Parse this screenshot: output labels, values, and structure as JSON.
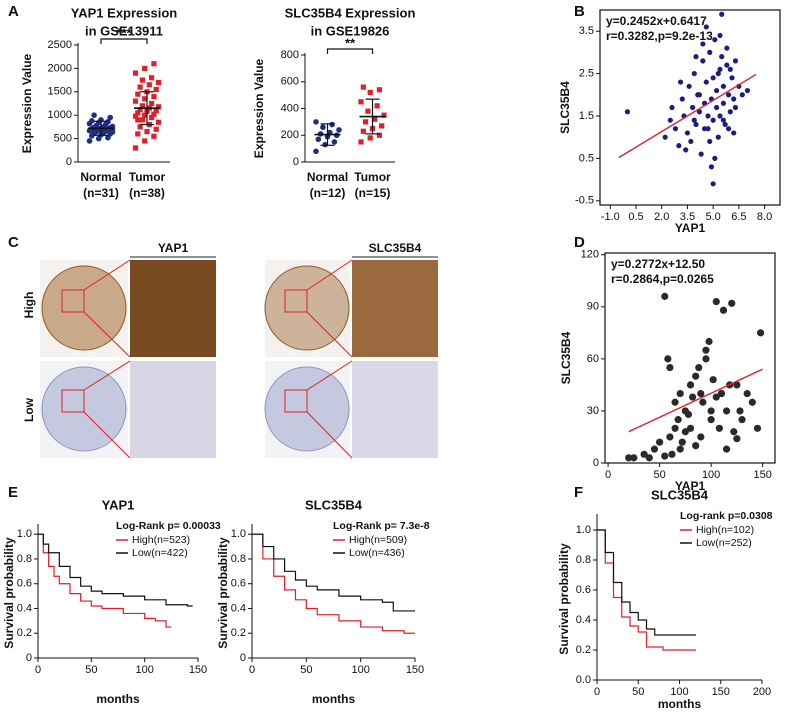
{
  "chart_data": [
    {
      "type": "strip",
      "panel_label": "A",
      "title": "YAP1 Expression",
      "subtitle": "in GSE13911",
      "ylabel": "Expression Value",
      "significance": "***",
      "ylim": [
        0,
        2500
      ],
      "yticks": [
        0,
        500,
        1000,
        1500,
        2000,
        2500
      ],
      "series": [
        {
          "name": "Normal",
          "n_label": "(n=31)",
          "color": "#1f2d86",
          "marker": "circle",
          "mean": 720,
          "sd": 150,
          "values": [
            450,
            500,
            520,
            560,
            580,
            600,
            610,
            620,
            640,
            650,
            660,
            670,
            690,
            700,
            710,
            720,
            730,
            740,
            750,
            760,
            780,
            800,
            820,
            840,
            860,
            880,
            900,
            950,
            1000,
            650,
            700
          ]
        },
        {
          "name": "Tumor",
          "n_label": "(n=38)",
          "color": "#e41e26",
          "marker": "square",
          "mean": 1150,
          "sd": 350,
          "values": [
            300,
            450,
            550,
            600,
            650,
            700,
            750,
            800,
            850,
            900,
            950,
            980,
            1000,
            1020,
            1050,
            1080,
            1100,
            1120,
            1150,
            1180,
            1200,
            1250,
            1300,
            1350,
            1400,
            1450,
            1500,
            1550,
            1600,
            1650,
            1700,
            1750,
            1800,
            1900,
            2000,
            2100,
            900,
            1100
          ]
        }
      ]
    },
    {
      "type": "strip",
      "title": "SLC35B4 Expression",
      "subtitle": "in GSE19826",
      "ylabel": "Expression Value",
      "significance": "**",
      "ylim": [
        0,
        800
      ],
      "yticks": [
        0,
        200,
        400,
        600,
        800
      ],
      "series": [
        {
          "name": "Normal",
          "n_label": "(n=12)",
          "color": "#1f2d86",
          "marker": "circle",
          "mean": 205,
          "sd": 80,
          "values": [
            80,
            130,
            150,
            170,
            190,
            200,
            210,
            220,
            240,
            260,
            280,
            300
          ]
        },
        {
          "name": "Tumor",
          "n_label": "(n=15)",
          "color": "#e41e26",
          "marker": "square",
          "mean": 340,
          "sd": 130,
          "values": [
            150,
            180,
            200,
            230,
            250,
            270,
            300,
            320,
            350,
            380,
            420,
            450,
            520,
            540,
            560
          ]
        }
      ]
    },
    {
      "type": "scatter",
      "panel_label": "B",
      "xlabel": "YAP1",
      "ylabel": "SLC35B4",
      "equation": "y=0.2452x+0.6417",
      "stats": "r=0.3282,p=9.2e-13",
      "color": "#1a1f80",
      "fit_color": "#e41e26",
      "xlim": [
        -1.6,
        8.9
      ],
      "ylim": [
        -0.6,
        4.0
      ],
      "xticks": [
        {
          "value": -1,
          "label": "-1.0"
        },
        0.5,
        {
          "value": 2,
          "label": "2.0"
        },
        3.5,
        {
          "value": 5,
          "label": "5.0"
        },
        6.5,
        {
          "value": 8,
          "label": "8.0"
        }
      ],
      "yticks": [
        -0.5,
        0.5,
        1.5,
        2.5,
        3.5
      ],
      "x": [
        0.0,
        2.2,
        2.5,
        2.8,
        3.0,
        3.2,
        3.3,
        3.5,
        3.6,
        3.7,
        3.8,
        3.9,
        4.0,
        4.1,
        4.2,
        4.3,
        4.4,
        4.5,
        4.5,
        4.6,
        4.7,
        4.8,
        4.8,
        4.9,
        5.0,
        5.0,
        5.1,
        5.2,
        5.2,
        5.3,
        5.4,
        5.4,
        5.5,
        5.6,
        5.6,
        5.7,
        5.8,
        5.9,
        6.0,
        6.1,
        6.2,
        6.3,
        6.5,
        6.7,
        7.0,
        3.4,
        4.0,
        4.6,
        5.1,
        5.5,
        5.9,
        6.3,
        3.9,
        4.4,
        4.9,
        5.3,
        5.8,
        6.2,
        4.2,
        5.0,
        5.6,
        2.6,
        3.1,
        4.7,
        5.4,
        6.0
      ],
      "y": [
        1.6,
        1.0,
        1.4,
        1.2,
        0.8,
        1.9,
        1.5,
        1.1,
        2.2,
        0.9,
        1.7,
        2.5,
        1.3,
        2.0,
        1.6,
        0.6,
        2.8,
        1.8,
        1.2,
        2.3,
        1.5,
        3.0,
        0.9,
        1.9,
        2.4,
        1.4,
        3.3,
        1.7,
        2.1,
        1.0,
        2.6,
        1.5,
        2.9,
        1.8,
        2.2,
        1.3,
        2.7,
        2.0,
        1.6,
        2.4,
        1.9,
        2.8,
        2.2,
        2.0,
        2.1,
        0.7,
        2.9,
        3.6,
        0.5,
        3.9,
        1.2,
        1.7,
        1.4,
        3.2,
        0.3,
        2.5,
        3.1,
        1.1,
        2.0,
        -0.1,
        1.4,
        1.7,
        2.3,
        1.2,
        3.4,
        2.6
      ],
      "fit": {
        "x": [
          -0.5,
          7.5
        ],
        "y": [
          0.52,
          2.48
        ]
      }
    },
    {
      "type": "scatter",
      "panel_label": "D",
      "xlabel": "YAP1",
      "ylabel": "SLC35B4",
      "equation": "y=0.2772x+12.50",
      "stats": "r=0.2864,p=0.0265",
      "color": "#2a2a2a",
      "fit_color": "#e41e26",
      "xlim": [
        -3,
        162
      ],
      "ylim": [
        0,
        121
      ],
      "xticks": [
        0,
        50,
        100,
        150
      ],
      "yticks": [
        0,
        30,
        60,
        90,
        120
      ],
      "x": [
        20,
        25,
        35,
        40,
        45,
        50,
        55,
        58,
        60,
        62,
        65,
        68,
        70,
        72,
        75,
        78,
        80,
        82,
        85,
        88,
        90,
        92,
        95,
        98,
        100,
        102,
        105,
        108,
        110,
        112,
        115,
        118,
        120,
        122,
        125,
        128,
        130,
        135,
        140,
        145,
        148,
        55,
        65,
        75,
        85,
        95,
        105,
        115,
        125,
        60,
        80,
        100,
        110,
        90,
        70
      ],
      "y": [
        3,
        3,
        5,
        3,
        8,
        12,
        96,
        60,
        15,
        5,
        20,
        25,
        8,
        12,
        30,
        28,
        45,
        38,
        10,
        55,
        40,
        35,
        60,
        70,
        25,
        48,
        93,
        20,
        40,
        88,
        30,
        45,
        92,
        18,
        45,
        30,
        25,
        40,
        35,
        20,
        75,
        4,
        35,
        18,
        50,
        65,
        38,
        8,
        14,
        55,
        20,
        30,
        40,
        15,
        40
      ],
      "fit": {
        "x": [
          20,
          150
        ],
        "y": [
          18.04,
          54.08
        ]
      }
    },
    {
      "type": "km",
      "panel_label": "E",
      "title": "YAP1",
      "xlabel": "months",
      "ylabel": "Survival probability",
      "annotation": "Log-Rank p= 0.00033",
      "xlim": [
        0,
        150
      ],
      "ylim": [
        0,
        1.05
      ],
      "xticks": [
        0,
        50,
        100,
        150
      ],
      "yticks": [
        0,
        0.2,
        0.4,
        0.6,
        0.8,
        {
          "value": 1,
          "label": "1.0"
        }
      ],
      "series": [
        {
          "name": "High(n=523)",
          "color": "#e41e26",
          "x": [
            0,
            5,
            10,
            15,
            20,
            30,
            40,
            50,
            60,
            80,
            100,
            110,
            120,
            125
          ],
          "values": [
            1.0,
            0.85,
            0.74,
            0.66,
            0.6,
            0.52,
            0.46,
            0.42,
            0.4,
            0.36,
            0.32,
            0.3,
            0.25,
            0.25
          ]
        },
        {
          "name": "Low(n=422)",
          "color": "#111111",
          "x": [
            0,
            5,
            10,
            20,
            30,
            40,
            50,
            60,
            80,
            100,
            120,
            140,
            145
          ],
          "values": [
            1.0,
            0.92,
            0.85,
            0.74,
            0.65,
            0.58,
            0.54,
            0.52,
            0.5,
            0.47,
            0.43,
            0.42,
            0.42
          ]
        }
      ]
    },
    {
      "type": "km",
      "title": "SLC35B4",
      "xlabel": "months",
      "ylabel": "Survival probability",
      "annotation": "Log-Rank p= 7.3e-8",
      "xlim": [
        0,
        150
      ],
      "ylim": [
        0,
        1.05
      ],
      "xticks": [
        0,
        50,
        100,
        150
      ],
      "yticks": [
        0,
        0.2,
        0.4,
        0.6,
        0.8,
        {
          "value": 1,
          "label": "1.0"
        }
      ],
      "series": [
        {
          "name": "High(n=509)",
          "color": "#e41e26",
          "x": [
            0,
            10,
            20,
            30,
            40,
            50,
            60,
            80,
            100,
            120,
            140,
            150
          ],
          "values": [
            1.0,
            0.8,
            0.66,
            0.55,
            0.47,
            0.4,
            0.35,
            0.3,
            0.25,
            0.22,
            0.2,
            0.2
          ]
        },
        {
          "name": "Low(n=436)",
          "color": "#111111",
          "x": [
            0,
            10,
            20,
            30,
            40,
            50,
            60,
            80,
            100,
            120,
            130,
            150
          ],
          "values": [
            1.0,
            0.9,
            0.8,
            0.7,
            0.63,
            0.58,
            0.55,
            0.5,
            0.47,
            0.45,
            0.38,
            0.38
          ]
        }
      ]
    },
    {
      "type": "km",
      "panel_label": "F",
      "title": "SLC35B4",
      "xlabel": "months",
      "ylabel": "Survival probability",
      "annotation": "Log-rank p=0.0308",
      "xlim": [
        0,
        200
      ],
      "ylim": [
        0,
        1.08
      ],
      "xticks": [
        0,
        50,
        100,
        150,
        200
      ],
      "yticks": [
        {
          "value": 0,
          "label": "0.0"
        },
        0.2,
        0.4,
        0.6,
        0.8,
        {
          "value": 1,
          "label": "1.0"
        }
      ],
      "series": [
        {
          "name": "High(n=102)",
          "color": "#e41e26",
          "x": [
            0,
            10,
            20,
            30,
            40,
            50,
            60,
            80,
            100,
            120
          ],
          "values": [
            1.0,
            0.78,
            0.55,
            0.42,
            0.36,
            0.32,
            0.22,
            0.2,
            0.2,
            0.2
          ]
        },
        {
          "name": "Low(n=252)",
          "color": "#111111",
          "x": [
            0,
            10,
            20,
            30,
            40,
            50,
            60,
            70,
            80,
            100,
            120
          ],
          "values": [
            1.0,
            0.85,
            0.65,
            0.52,
            0.45,
            0.4,
            0.34,
            0.3,
            0.3,
            0.3,
            0.3
          ]
        }
      ]
    }
  ],
  "panel_c": {
    "panel_label": "C",
    "columns": [
      "YAP1",
      "SLC35B4"
    ],
    "rows": [
      "High",
      "Low"
    ]
  }
}
